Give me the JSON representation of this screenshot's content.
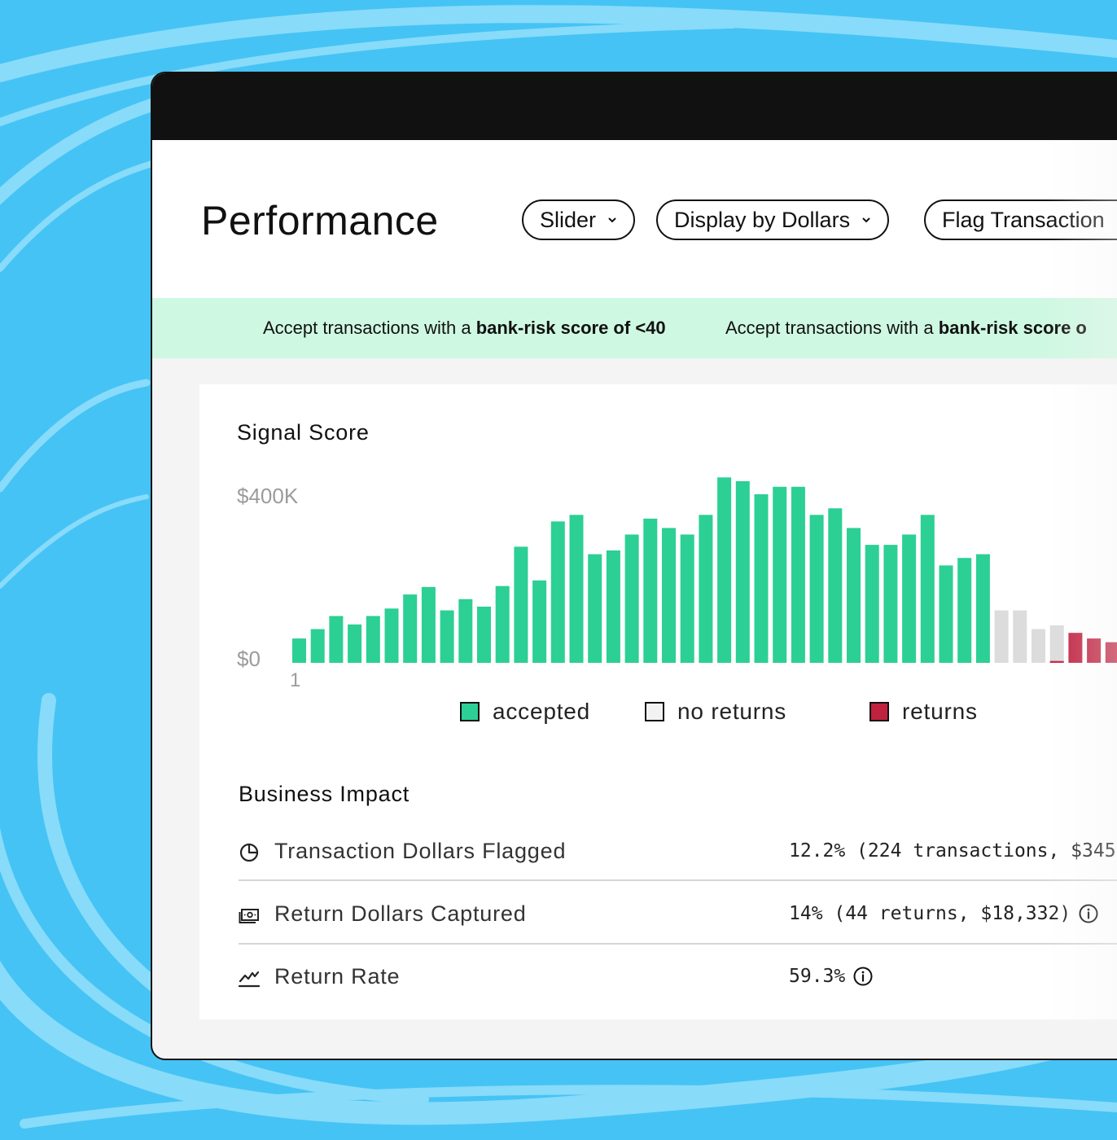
{
  "header": {
    "title": "Performance",
    "controls": [
      {
        "label": "Slider",
        "has_chevron": true
      },
      {
        "label": "Display by Dollars",
        "has_chevron": true
      },
      {
        "label": "Flag Transaction",
        "has_chevron": false
      }
    ]
  },
  "banner": {
    "messages": [
      {
        "prefix": "Accept transactions with a ",
        "emphasis": "bank-risk score of <40"
      },
      {
        "prefix": "Accept transactions with a ",
        "emphasis": "bank-risk score o"
      }
    ]
  },
  "signal": {
    "title": "Signal Score"
  },
  "chart_data": {
    "type": "bar",
    "title": "Signal Score",
    "y_ticks": [
      "$400K",
      "$0"
    ],
    "x_ticks": [
      "1"
    ],
    "ylim": [
      0,
      400000
    ],
    "series": [
      {
        "name": "accepted",
        "color": "#2ccf94",
        "values": [
          52000,
          72000,
          100000,
          82000,
          100000,
          116000,
          146000,
          162000,
          112000,
          136000,
          120000,
          164000,
          248000,
          176000,
          302000,
          316000,
          232000,
          240000,
          274000,
          308000,
          288000,
          274000,
          316000,
          396000,
          388000,
          360000,
          376000,
          376000,
          316000,
          330000,
          288000,
          252000,
          252000,
          274000,
          316000,
          208000,
          224000,
          232000
        ]
      },
      {
        "name": "no returns",
        "color": "#dcdcdc",
        "values": [
          112000,
          112000,
          72000,
          80000,
          0,
          0,
          0
        ]
      },
      {
        "name": "returns",
        "color": "#c0213f",
        "values": [
          0,
          0,
          0,
          4000,
          64000,
          52000,
          44000
        ]
      }
    ],
    "legend": [
      {
        "label": "accepted",
        "color": "#2ccf94"
      },
      {
        "label": "no returns",
        "color": "#f2f2f2"
      },
      {
        "label": "returns",
        "color": "#c0213f"
      }
    ],
    "legend_position": "bottom"
  },
  "impact": {
    "title": "Business Impact",
    "rows": [
      {
        "icon": "pie-chart-icon",
        "label": "Transaction Dollars Flagged",
        "value": "12.2% (224 transactions, $345,",
        "info": false
      },
      {
        "icon": "cash-icon",
        "label": "Return Dollars Captured",
        "value": "14% (44 returns, $18,332)",
        "info": true
      },
      {
        "icon": "trend-line-icon",
        "label": "Return Rate",
        "value": "59.3%",
        "info": true
      }
    ]
  }
}
